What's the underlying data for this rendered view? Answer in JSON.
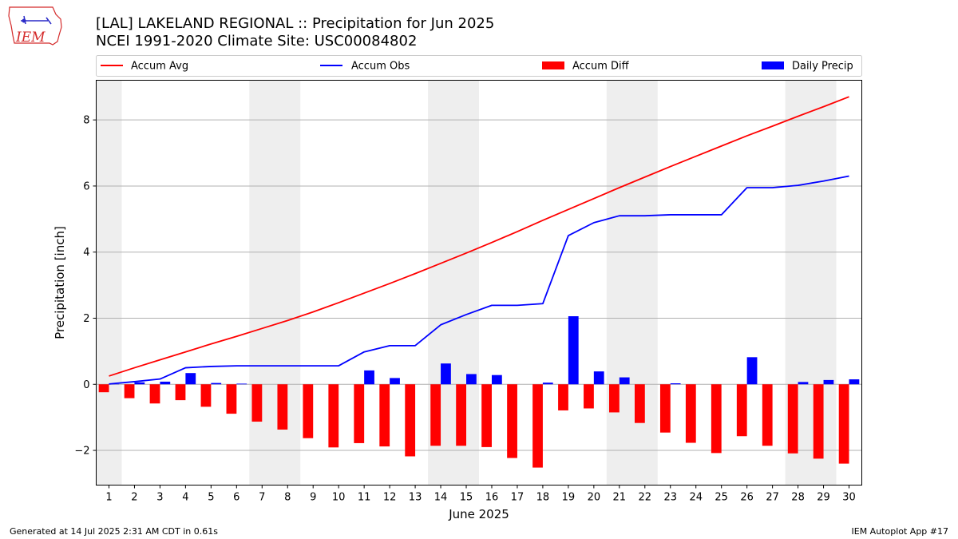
{
  "logo_text": "IEM",
  "title_line1": "[LAL] LAKELAND REGIONAL :: Precipitation for Jun 2025",
  "title_line2": "NCEI 1991-2020 Climate Site: USC00084802",
  "footer_left": "Generated at 14 Jul 2025 2:31 AM CDT in 0.61s",
  "footer_right": "IEM Autoplot App #17",
  "chart_data": {
    "type": "bar",
    "xlabel": "June 2025",
    "ylabel": "Precipitation [inch]",
    "ylim": [
      -3.05,
      9.2
    ],
    "yticks": [
      -2,
      0,
      2,
      4,
      6,
      8
    ],
    "grid": true,
    "legend_placement": "top",
    "weekend_shading": [
      [
        0.5,
        1.5
      ],
      [
        6.5,
        8.5
      ],
      [
        13.5,
        15.5
      ],
      [
        20.5,
        22.5
      ],
      [
        27.5,
        29.5
      ]
    ],
    "x": [
      1,
      2,
      3,
      4,
      5,
      6,
      7,
      8,
      9,
      10,
      11,
      12,
      13,
      14,
      15,
      16,
      17,
      18,
      19,
      20,
      21,
      22,
      23,
      24,
      25,
      26,
      27,
      28,
      29,
      30
    ],
    "series": [
      {
        "name": "Accum Avg",
        "kind": "line",
        "color": "#ff0000",
        "values": [
          0.25,
          0.5,
          0.74,
          0.98,
          1.22,
          1.45,
          1.69,
          1.93,
          2.19,
          2.47,
          2.76,
          3.05,
          3.35,
          3.66,
          3.97,
          4.29,
          4.62,
          4.96,
          5.29,
          5.62,
          5.95,
          6.27,
          6.59,
          6.9,
          7.21,
          7.52,
          7.81,
          8.11,
          8.4,
          8.7
        ]
      },
      {
        "name": "Accum Obs",
        "kind": "line",
        "color": "#0000ff",
        "values": [
          0.01,
          0.08,
          0.16,
          0.5,
          0.54,
          0.56,
          0.56,
          0.56,
          0.56,
          0.56,
          0.98,
          1.17,
          1.17,
          1.8,
          2.11,
          2.39,
          2.39,
          2.44,
          4.5,
          4.89,
          5.1,
          5.1,
          5.13,
          5.13,
          5.13,
          5.95,
          5.95,
          6.02,
          6.15,
          6.3
        ]
      },
      {
        "name": "Accum Diff",
        "kind": "bar",
        "color": "#ff0000",
        "values": [
          -0.24,
          -0.42,
          -0.58,
          -0.48,
          -0.68,
          -0.89,
          -1.13,
          -1.37,
          -1.63,
          -1.91,
          -1.78,
          -1.88,
          -2.18,
          -1.86,
          -1.86,
          -1.9,
          -2.23,
          -2.52,
          -0.79,
          -0.73,
          -0.85,
          -1.17,
          -1.46,
          -1.77,
          -2.08,
          -1.57,
          -1.86,
          -2.09,
          -2.25,
          -2.4
        ]
      },
      {
        "name": "Daily Precip",
        "kind": "bar",
        "color": "#0000ff",
        "values": [
          0.01,
          0.06,
          0.08,
          0.34,
          0.04,
          0.02,
          0,
          0,
          0,
          0,
          0.42,
          0.19,
          0,
          0.63,
          0.31,
          0.28,
          0,
          0.05,
          2.06,
          0.39,
          0.21,
          0,
          0.03,
          0,
          0,
          0.82,
          0,
          0.07,
          0.13,
          0.15
        ]
      }
    ]
  }
}
